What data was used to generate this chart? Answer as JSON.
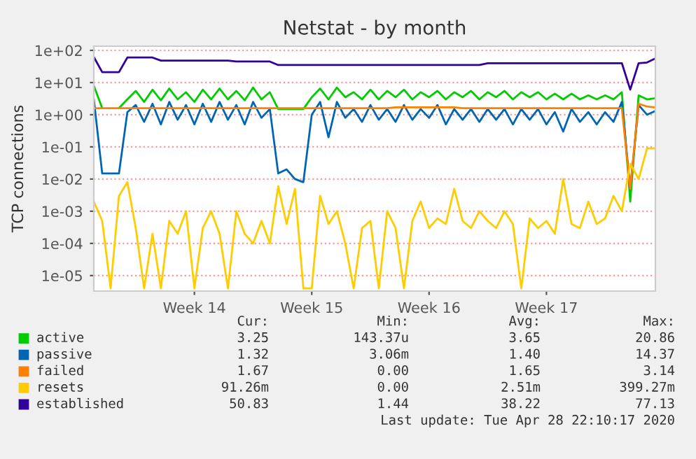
{
  "chart_data": {
    "type": "line",
    "title": "Netstat - by month",
    "ylabel": "TCP connections",
    "log": "y",
    "grid": "y",
    "legend": "bottom",
    "ylim": [
      3.3e-06,
      135
    ],
    "yticks": [
      {
        "value": 1e-05,
        "label": "1e-05"
      },
      {
        "value": 0.0001,
        "label": "1e-04"
      },
      {
        "value": 0.001,
        "label": "1e-03"
      },
      {
        "value": 0.01,
        "label": "1e-02"
      },
      {
        "value": 0.1,
        "label": "1e-01"
      },
      {
        "value": 1,
        "label": "1e+00"
      },
      {
        "value": 10,
        "label": "1e+01"
      },
      {
        "value": 100,
        "label": "1e+02"
      }
    ],
    "categories": [
      null,
      null,
      null,
      null,
      null,
      null,
      null,
      null,
      null,
      null,
      null,
      null,
      "Week 14",
      null,
      null,
      null,
      null,
      null,
      null,
      null,
      null,
      null,
      null,
      null,
      null,
      null,
      "Week 15",
      null,
      null,
      null,
      null,
      null,
      null,
      null,
      null,
      null,
      null,
      null,
      null,
      null,
      "Week 16",
      null,
      null,
      null,
      null,
      null,
      null,
      null,
      null,
      null,
      null,
      null,
      null,
      null,
      "Week 17",
      null,
      null,
      null,
      null,
      null,
      null,
      null,
      null,
      null,
      null,
      null,
      null,
      null
    ],
    "series": [
      {
        "name": "active",
        "color": "#00cc00",
        "values": [
          8,
          1.6,
          null,
          1.6,
          3,
          5.5,
          2.5,
          6,
          2.8,
          6.5,
          3,
          5,
          2.5,
          6,
          3,
          6.5,
          3,
          5.5,
          2.8,
          7,
          3,
          5,
          1.5,
          1.5,
          1.5,
          1.5,
          3.5,
          6.5,
          3,
          7,
          3.5,
          5,
          3,
          6,
          3,
          5.5,
          3.5,
          6,
          3,
          5,
          3.5,
          5.5,
          3,
          5,
          3.5,
          5.5,
          3,
          5,
          3.5,
          5.5,
          3,
          5,
          3.5,
          5,
          3,
          4.5,
          3,
          4.5,
          3,
          4,
          3,
          4,
          3,
          5,
          0.002,
          4,
          3,
          3.25
        ]
      },
      {
        "name": "passive",
        "color": "#0066b3",
        "values": [
          3,
          0.015,
          0.015,
          0.015,
          1.2,
          2,
          0.6,
          2.2,
          0.5,
          2.5,
          0.7,
          2,
          0.5,
          2.2,
          0.6,
          2.5,
          0.7,
          2,
          0.5,
          2.5,
          0.8,
          1.5,
          0.015,
          0.02,
          0.01,
          0.008,
          1,
          2.5,
          0.2,
          2.5,
          0.8,
          1.5,
          0.6,
          2,
          0.7,
          1.5,
          0.6,
          2,
          0.7,
          1.5,
          0.8,
          2,
          0.5,
          1.5,
          0.7,
          1.5,
          0.6,
          1.5,
          0.7,
          1.5,
          0.5,
          1.5,
          0.7,
          1.5,
          0.5,
          1.2,
          0.3,
          1.5,
          0.6,
          1.2,
          0.5,
          1.2,
          0.6,
          2.5,
          0.005,
          2,
          1,
          1.32
        ]
      },
      {
        "name": "failed",
        "color": "#ff8000",
        "values": [
          1.6,
          1.6,
          1.6,
          1.6,
          1.6,
          1.6,
          1.6,
          1.6,
          1.6,
          1.6,
          1.6,
          1.6,
          1.6,
          1.6,
          1.6,
          1.6,
          1.6,
          1.6,
          1.6,
          1.6,
          1.6,
          1.6,
          1.6,
          1.6,
          1.6,
          1.6,
          1.6,
          1.6,
          1.6,
          1.6,
          1.6,
          1.6,
          1.6,
          1.6,
          1.6,
          1.6,
          1.7,
          1.7,
          1.7,
          1.7,
          1.7,
          1.7,
          1.7,
          1.7,
          1.6,
          1.6,
          1.6,
          1.6,
          1.6,
          1.6,
          1.6,
          1.6,
          1.6,
          1.6,
          1.6,
          1.6,
          1.6,
          1.6,
          1.6,
          1.6,
          1.6,
          1.6,
          1.6,
          1.6,
          0.005,
          2.2,
          1.8,
          1.67
        ]
      },
      {
        "name": "resets",
        "color": "#ffcc00",
        "values": [
          0.002,
          0.0005,
          4e-06,
          0.003,
          0.008,
          0.0003,
          4e-06,
          0.0002,
          4e-06,
          0.0005,
          0.0002,
          0.001,
          4e-06,
          0.0003,
          0.001,
          0.0002,
          4e-06,
          0.001,
          0.0002,
          0.0001,
          0.0005,
          0.0001,
          0.006,
          0.0004,
          0.005,
          4e-06,
          4e-06,
          0.003,
          0.0004,
          0.001,
          0.0001,
          4e-06,
          0.0003,
          0.0005,
          4e-06,
          0.001,
          0.0003,
          4e-06,
          0.0005,
          0.002,
          0.0003,
          0.0006,
          0.0004,
          0.005,
          0.0005,
          0.0003,
          0.001,
          0.0005,
          0.0003,
          0.001,
          0.0004,
          4e-06,
          0.0006,
          0.0003,
          0.0005,
          0.0002,
          0.01,
          0.0004,
          0.0003,
          0.002,
          0.0004,
          0.0006,
          0.003,
          0.001,
          0.03,
          0.01,
          0.09,
          0.09
        ]
      },
      {
        "name": "established",
        "color": "#330099",
        "values": [
          62,
          21,
          21,
          21,
          60,
          60,
          60,
          60,
          48,
          48,
          48,
          48,
          48,
          48,
          48,
          48,
          48,
          45,
          45,
          45,
          45,
          45,
          35,
          35,
          35,
          35,
          35,
          35,
          35,
          35,
          35,
          35,
          35,
          35,
          35,
          35,
          35,
          35,
          35,
          35,
          35,
          35,
          35,
          35,
          35,
          35,
          35,
          40,
          40,
          40,
          40,
          40,
          40,
          40,
          40,
          40,
          40,
          40,
          40,
          40,
          40,
          40,
          40,
          40,
          6,
          40,
          42,
          56
        ]
      }
    ],
    "annotations": [
      "Cur:",
      "Min:",
      "Avg:",
      "Max:",
      "3.25",
      "143.37u",
      "3.65",
      "20.86",
      "1.32",
      "3.06m",
      "1.40",
      "14.37",
      "1.67",
      "0.00",
      "1.65",
      "3.14",
      "91.26m",
      "0.00",
      "2.51m",
      "399.27m",
      "50.83",
      "1.44",
      "38.22",
      "77.13",
      "Last update: Tue Apr 28 22:10:17 2020"
    ]
  }
}
